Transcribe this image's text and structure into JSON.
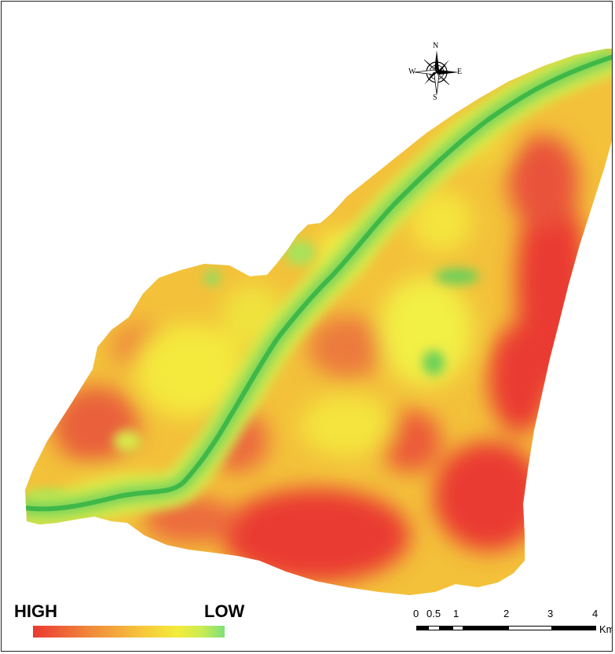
{
  "compass": {
    "north": "N",
    "south": "S",
    "east": "E",
    "west": "W"
  },
  "legend": {
    "high_label": "HIGH",
    "low_label": "LOW",
    "gradient_colors": [
      "#ea3a32",
      "#f08a3a",
      "#f6c23c",
      "#f4ec3a",
      "#c9ec52",
      "#7fe07a"
    ]
  },
  "scale_bar": {
    "labels": [
      "0",
      "0.5",
      "1",
      "2",
      "3",
      "4"
    ],
    "unit": "Km"
  },
  "colors": {
    "high": "#ea3a32",
    "mid": "#f6c23c",
    "low_mid": "#f4ec3a",
    "low": "#5fd35a",
    "river": "#48c048",
    "border": "#222222"
  }
}
